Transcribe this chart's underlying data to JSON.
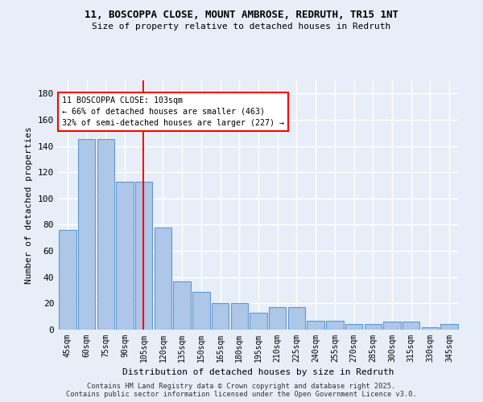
{
  "title_line1": "11, BOSCOPPA CLOSE, MOUNT AMBROSE, REDRUTH, TR15 1NT",
  "title_line2": "Size of property relative to detached houses in Redruth",
  "xlabel": "Distribution of detached houses by size in Redruth",
  "ylabel": "Number of detached properties",
  "categories": [
    "45sqm",
    "60sqm",
    "75sqm",
    "90sqm",
    "105sqm",
    "120sqm",
    "135sqm",
    "150sqm",
    "165sqm",
    "180sqm",
    "195sqm",
    "210sqm",
    "225sqm",
    "240sqm",
    "255sqm",
    "270sqm",
    "285sqm",
    "300sqm",
    "315sqm",
    "330sqm",
    "345sqm"
  ],
  "values": [
    76,
    145,
    145,
    113,
    113,
    78,
    37,
    29,
    20,
    20,
    13,
    17,
    17,
    7,
    7,
    4,
    4,
    6,
    6,
    2,
    4
  ],
  "bar_color": "#aec6e8",
  "bar_edge_color": "#5b9bd5",
  "vline_x": 3.95,
  "vline_color": "red",
  "annotation_text": "11 BOSCOPPA CLOSE: 103sqm\n← 66% of detached houses are smaller (463)\n32% of semi-detached houses are larger (227) →",
  "annotation_box_color": "white",
  "annotation_box_edge": "red",
  "ylim": [
    0,
    190
  ],
  "yticks": [
    0,
    20,
    40,
    60,
    80,
    100,
    120,
    140,
    160,
    180
  ],
  "background_color": "#e8eef8",
  "grid_color": "white",
  "footer_line1": "Contains HM Land Registry data © Crown copyright and database right 2025.",
  "footer_line2": "Contains public sector information licensed under the Open Government Licence v3.0."
}
